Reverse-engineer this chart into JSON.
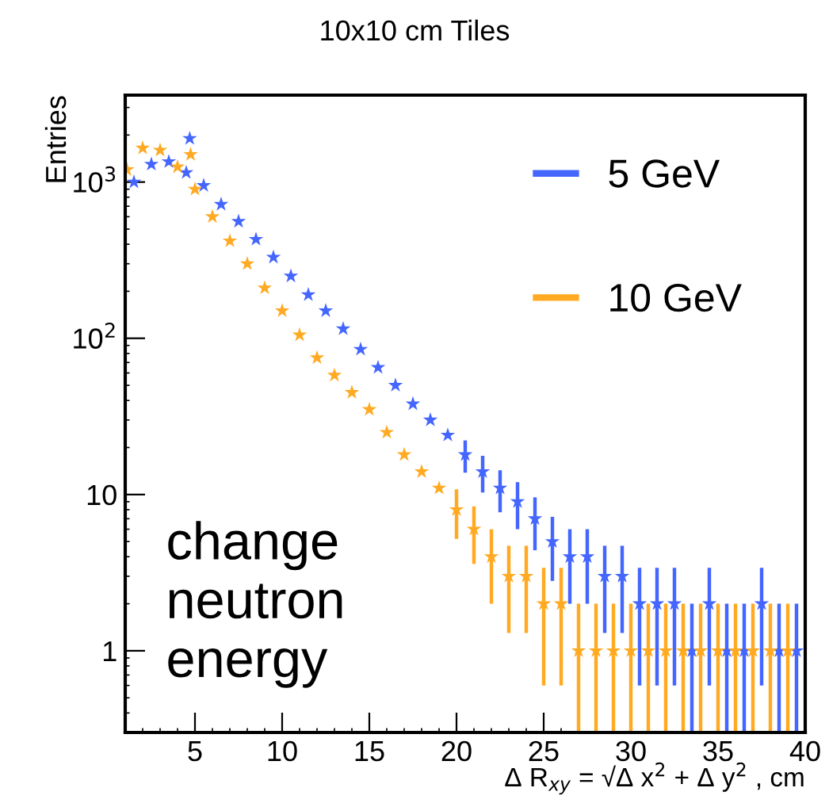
{
  "chart_data": {
    "type": "scatter",
    "title": "10x10 cm Tiles",
    "xlabel": "Δ R$_{xy}$ = √Δ x$^{2}$ + Δ y$^{2}$ , cm",
    "ylabel": "Entries",
    "annotations": [
      "change\nneutron\nenergy"
    ],
    "series": [
      {
        "name": "5 GeV",
        "color": "#4466ff",
        "x": [
          1.5,
          2.5,
          3.5,
          4.5,
          4.7,
          5.5,
          6.5,
          7.5,
          8.5,
          9.5,
          10.5,
          11.5,
          12.5,
          13.5,
          14.5,
          15.5,
          16.5,
          17.5,
          18.5,
          19.5,
          20.5,
          21.5,
          22.5,
          23.5,
          24.5,
          25.5,
          26.5,
          27.5,
          28.5,
          29.5,
          30.5,
          31.5,
          32.5,
          33.5,
          34.5,
          35.5,
          36.5,
          37.5,
          38.5,
          39.5
        ],
        "values": [
          1000,
          1300,
          1350,
          1150,
          1900,
          950,
          720,
          560,
          430,
          330,
          250,
          190,
          150,
          115,
          85,
          65,
          50,
          38,
          30,
          24,
          18,
          14,
          11,
          9,
          7,
          5,
          4,
          4,
          3,
          3,
          2,
          2,
          2,
          1,
          2,
          1,
          1,
          2,
          1,
          1
        ],
        "errors": [
          null,
          null,
          null,
          null,
          null,
          null,
          null,
          null,
          null,
          null,
          null,
          null,
          null,
          null,
          null,
          null,
          null,
          null,
          null,
          null,
          [
            13.8,
            22.2
          ],
          [
            10.3,
            17.7
          ],
          [
            7.7,
            14.3
          ],
          [
            6,
            12
          ],
          [
            4.4,
            9.6
          ],
          [
            2.8,
            7.2
          ],
          [
            2,
            6
          ],
          [
            2,
            6
          ],
          [
            1.3,
            4.7
          ],
          [
            1.3,
            4.7
          ],
          [
            0.6,
            3.4
          ],
          [
            0.6,
            3.4
          ],
          [
            0.6,
            3.4
          ],
          [
            0.3,
            2
          ],
          [
            0.6,
            3.4
          ],
          [
            0.3,
            2
          ],
          [
            0.3,
            2
          ],
          [
            0.6,
            3.4
          ],
          [
            0.3,
            2
          ],
          [
            0.3,
            2
          ]
        ]
      },
      {
        "name": "10 GeV",
        "color": "#ffaa22",
        "x": [
          1.1,
          2,
          3,
          4,
          4.75,
          5,
          6,
          7,
          8,
          9,
          10,
          11,
          12,
          13,
          14,
          15,
          16,
          17,
          18,
          19,
          20,
          21,
          22,
          23,
          24,
          25,
          26,
          27,
          28,
          29,
          30,
          31,
          32,
          33,
          34,
          35,
          36,
          37,
          38,
          39
        ],
        "values": [
          1200,
          1650,
          1600,
          1250,
          1500,
          900,
          600,
          420,
          300,
          210,
          150,
          105,
          75,
          58,
          45,
          35,
          25,
          18,
          14,
          11,
          8,
          6,
          4,
          3,
          3,
          2,
          2,
          1,
          1,
          1,
          1,
          1,
          1,
          1,
          1,
          1,
          1,
          1,
          1,
          1
        ],
        "errors": [
          null,
          null,
          null,
          null,
          null,
          null,
          null,
          null,
          null,
          null,
          null,
          null,
          null,
          null,
          null,
          null,
          null,
          null,
          null,
          null,
          [
            5.2,
            10.8
          ],
          [
            3.6,
            8.4
          ],
          [
            2,
            6
          ],
          [
            1.3,
            4.7
          ],
          [
            1.3,
            4.7
          ],
          [
            0.6,
            3.4
          ],
          [
            0.6,
            3.4
          ],
          [
            0.3,
            2
          ],
          [
            0.3,
            2
          ],
          [
            0.3,
            2
          ],
          [
            0.3,
            2
          ],
          [
            0.3,
            2
          ],
          [
            0.3,
            2
          ],
          [
            0.3,
            2
          ],
          [
            0.3,
            2
          ],
          [
            0.3,
            2
          ],
          [
            0.3,
            2
          ],
          [
            0.3,
            2
          ],
          [
            0.3,
            2
          ],
          [
            0.3,
            2
          ]
        ]
      }
    ],
    "marker": "star",
    "log": "y",
    "grid": false,
    "legend": "top right",
    "xlim": [
      1,
      40
    ],
    "xticks": [
      5,
      10,
      15,
      20,
      25,
      30,
      35,
      40
    ],
    "ylim": [
      0.3,
      3600
    ],
    "yticks": [
      1,
      10,
      {
        "value": 100,
        "label": "10$^{2}$"
      },
      {
        "value": 1000,
        "label": "10$^{3}$"
      }
    ]
  }
}
